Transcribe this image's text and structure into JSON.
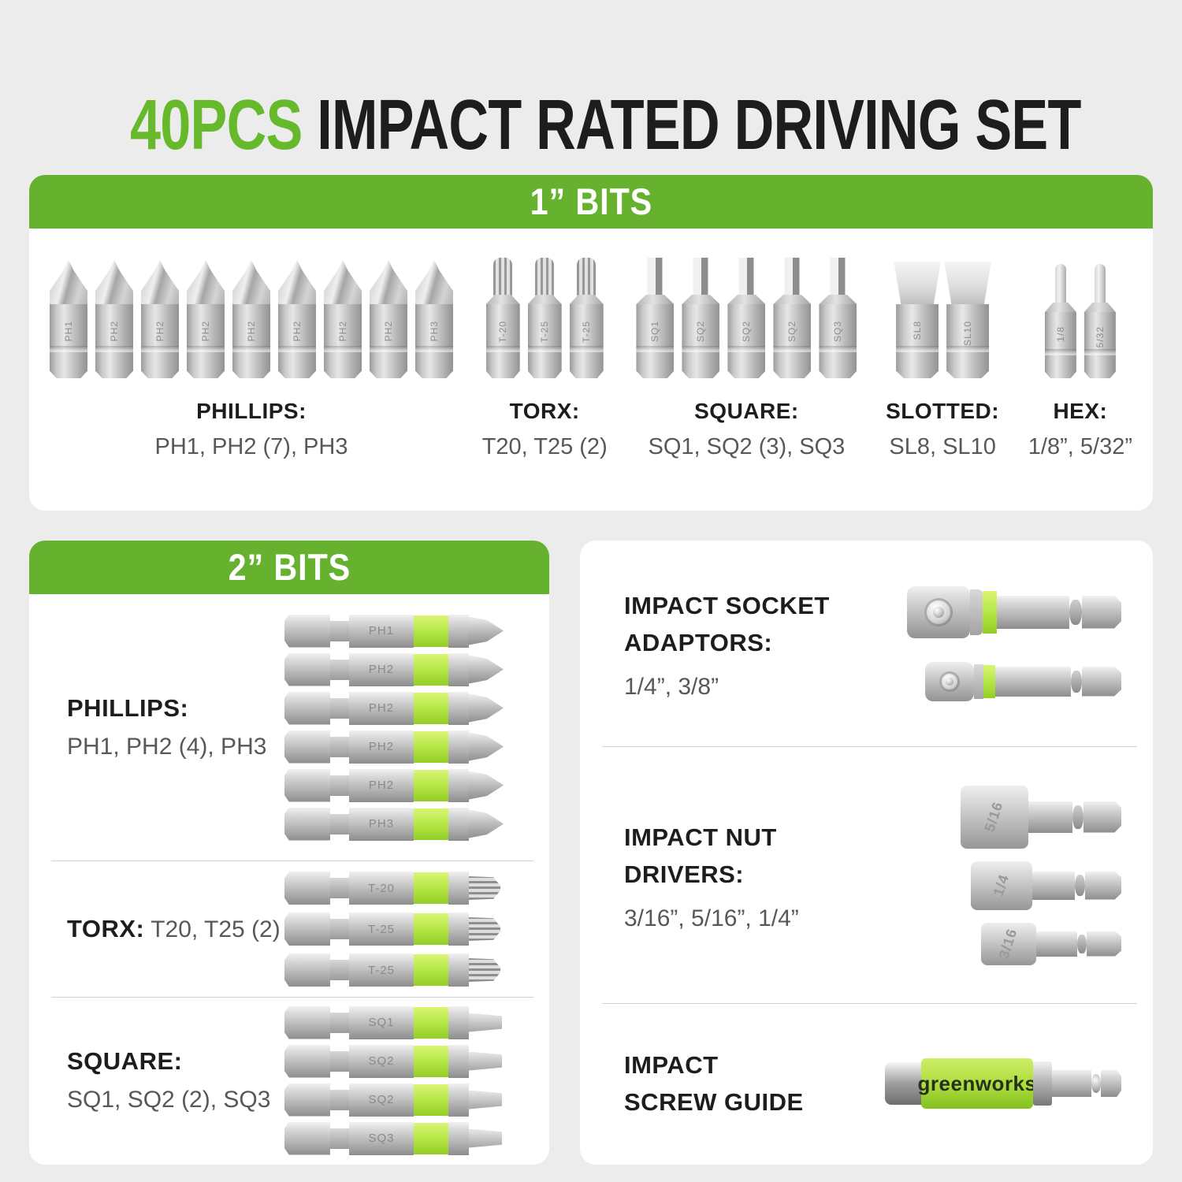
{
  "colors": {
    "page_bg": "#edecec",
    "panel_bg": "#ffffff",
    "brand_green": "#66b22f",
    "title_green": "#67b92c",
    "band_green": "#b9e94b",
    "guide_green": "#a9dc3c",
    "text_dark": "#1d1d1d",
    "text_gray": "#585858",
    "divider": "#d2d2d2"
  },
  "title": {
    "highlight": "40PCS",
    "rest": " IMPACT RATED DRIVING SET"
  },
  "one_inch": {
    "header": "1” BITS",
    "groups": [
      {
        "id": "phillips",
        "caption": "PHILLIPS:",
        "detail": "PH1, PH2 (7), PH3",
        "bit_type": "phillips",
        "bits": [
          "PH1",
          "PH2",
          "PH2",
          "PH2",
          "PH2",
          "PH2",
          "PH2",
          "PH2",
          "PH3"
        ]
      },
      {
        "id": "torx",
        "caption": "TORX:",
        "detail": "T20, T25 (2)",
        "bit_type": "torx",
        "bits": [
          "T-20",
          "T-25",
          "T-25"
        ]
      },
      {
        "id": "square",
        "caption": "SQUARE:",
        "detail": "SQ1, SQ2 (3), SQ3",
        "bit_type": "square",
        "bits": [
          "SQ1",
          "SQ2",
          "SQ2",
          "SQ2",
          "SQ3"
        ]
      },
      {
        "id": "slotted",
        "caption": "SLOTTED:",
        "detail": "SL8, SL10",
        "bit_type": "slotted",
        "bits": [
          "SL8",
          "SL10"
        ]
      },
      {
        "id": "hex",
        "caption": "HEX:",
        "detail": "1/8”, 5/32”",
        "bit_type": "hex",
        "bits": [
          "1/8",
          "5/32"
        ]
      }
    ]
  },
  "two_inch": {
    "header": "2” BITS",
    "sections": [
      {
        "id": "phillips",
        "label": "PHILLIPS:",
        "detail": "PH1, PH2 (4), PH3",
        "inline": false,
        "bit_type": "phillips",
        "bits": [
          "PH1",
          "PH2",
          "PH2",
          "PH2",
          "PH2",
          "PH3"
        ]
      },
      {
        "id": "torx",
        "label": "TORX:",
        "detail": " T20, T25 (2)",
        "inline": true,
        "bit_type": "torx",
        "bits": [
          "T-20",
          "T-25",
          "T-25"
        ]
      },
      {
        "id": "square",
        "label": "SQUARE:",
        "detail": "SQ1, SQ2 (2), SQ3",
        "inline": false,
        "bit_type": "square",
        "bits": [
          "SQ1",
          "SQ2",
          "SQ2",
          "SQ3"
        ]
      }
    ]
  },
  "accessories": {
    "sections": [
      {
        "id": "socket-adaptors",
        "heading_lines": [
          "IMPACT SOCKET",
          "ADAPTORS:"
        ],
        "detail": "1/4”, 3/8”",
        "kind": "adaptors",
        "items": [
          {
            "size": "3/8"
          },
          {
            "size": "1/4"
          }
        ]
      },
      {
        "id": "nut-drivers",
        "heading_lines": [
          "IMPACT NUT",
          "DRIVERS:"
        ],
        "detail": "3/16”, 5/16”, 1/4”",
        "kind": "nut_drivers",
        "items": [
          {
            "size": "5/16"
          },
          {
            "size": "1/4"
          },
          {
            "size": "3/16"
          }
        ]
      },
      {
        "id": "screw-guide",
        "heading_lines": [
          "IMPACT",
          "SCREW GUIDE"
        ],
        "detail": "",
        "kind": "screw_guide",
        "brand": "greenworks"
      }
    ]
  }
}
